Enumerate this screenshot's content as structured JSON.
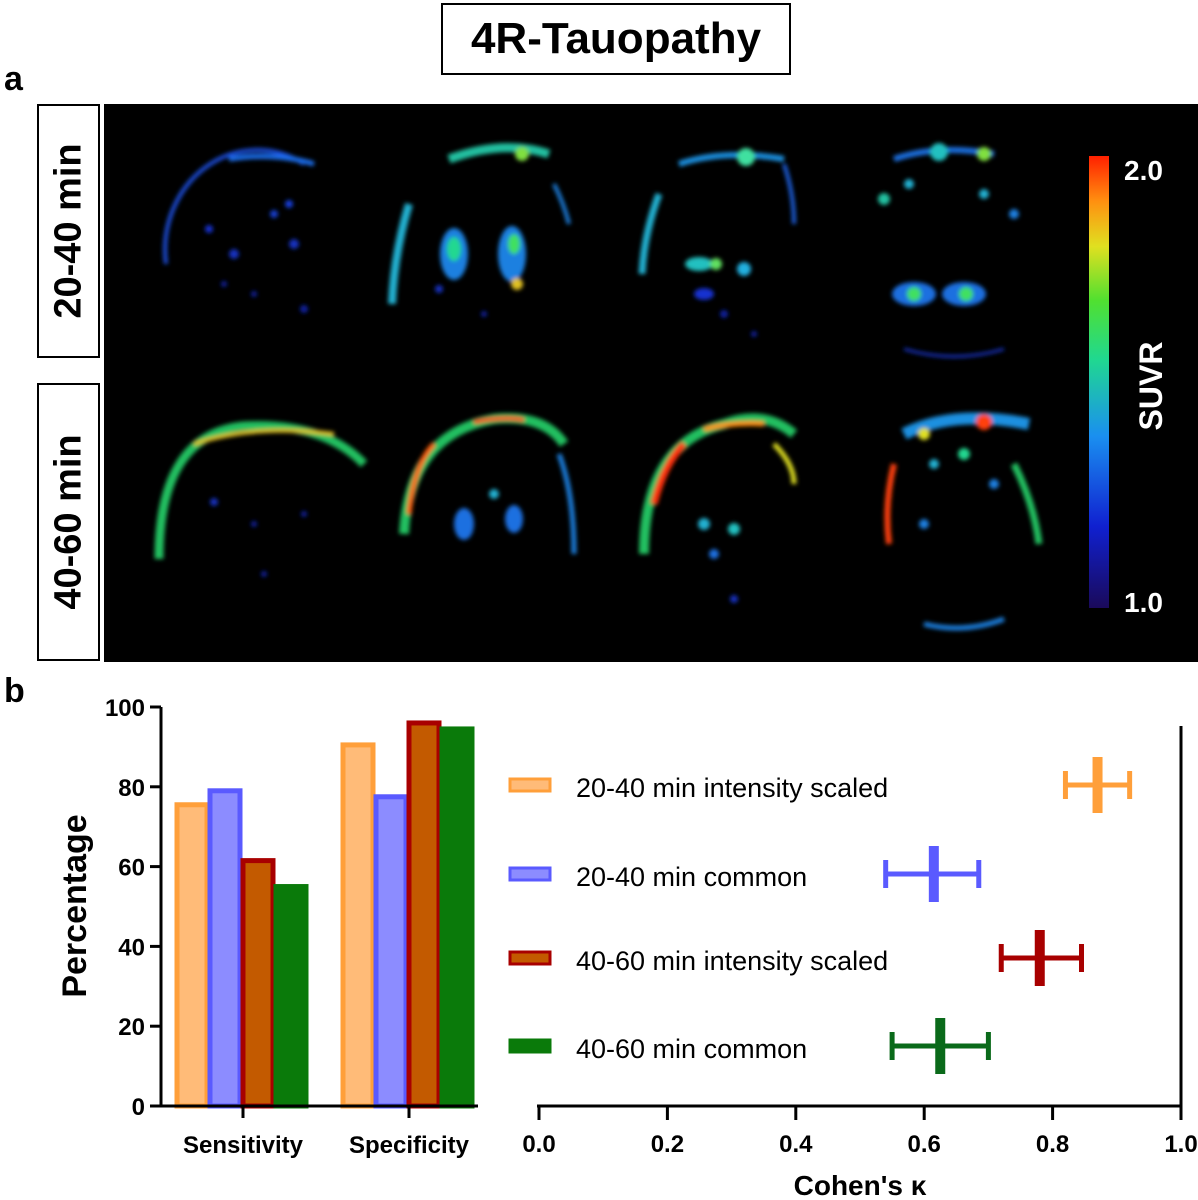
{
  "title": "4R-Tauopathy",
  "panel_a": {
    "letter": "a",
    "rows": [
      "20-40 min",
      "40-60 min"
    ],
    "colorbar": {
      "label": "SUVR",
      "max_label": "2.0",
      "min_label": "1.0",
      "min": 1.0,
      "max": 2.0
    }
  },
  "panel_b": {
    "letter": "b"
  },
  "chart_data": [
    {
      "type": "bar",
      "categories": [
        "Sensitivity",
        "Specificity"
      ],
      "ylabel": "Percentage",
      "ylim": [
        0,
        100
      ],
      "yticks": [
        "0",
        "20",
        "40",
        "60",
        "80",
        "100"
      ],
      "series": [
        {
          "name": "20-40 min intensity scaled",
          "values": [
            75.5,
            90.5
          ],
          "fill": "#ffbb78",
          "stroke": "#ff9f3a"
        },
        {
          "name": "20-40 min common",
          "values": [
            79,
            77.5
          ],
          "fill": "#8c8cff",
          "stroke": "#5a5aff"
        },
        {
          "name": "40-60 min intensity scaled",
          "values": [
            61.5,
            96
          ],
          "fill": "#c35a00",
          "stroke": "#a80000"
        },
        {
          "name": "40-60 min common",
          "values": [
            55,
            94.5
          ],
          "fill": "#0a7a0a",
          "stroke": "#0a7a0a"
        }
      ]
    },
    {
      "type": "scatter",
      "xlabel": "Cohen's κ",
      "xlim": [
        0,
        1
      ],
      "xticks": [
        "0.0",
        "0.2",
        "0.4",
        "0.6",
        "0.8",
        "1.0"
      ],
      "points": [
        {
          "name": "20-40 min intensity scaled",
          "kappa": 0.87,
          "ci": [
            0.82,
            0.92
          ],
          "color": "#ff9f3a"
        },
        {
          "name": "20-40 min common",
          "kappa": 0.615,
          "ci": [
            0.54,
            0.685
          ],
          "color": "#5a5aff"
        },
        {
          "name": "40-60 min intensity scaled",
          "kappa": 0.78,
          "ci": [
            0.72,
            0.845
          ],
          "color": "#a80000"
        },
        {
          "name": "40-60 min common",
          "kappa": 0.625,
          "ci": [
            0.55,
            0.7
          ],
          "color": "#0a6a1a"
        }
      ]
    }
  ],
  "legend": [
    {
      "label": "20-40 min intensity scaled",
      "fill": "#ffbb78",
      "stroke": "#ff9f3a"
    },
    {
      "label": "20-40 min common",
      "fill": "#8c8cff",
      "stroke": "#5a5aff"
    },
    {
      "label": "40-60 min intensity scaled",
      "fill": "#c35a00",
      "stroke": "#a80000"
    },
    {
      "label": "40-60 min common",
      "fill": "#0a7a0a",
      "stroke": "#0a7a0a"
    }
  ]
}
